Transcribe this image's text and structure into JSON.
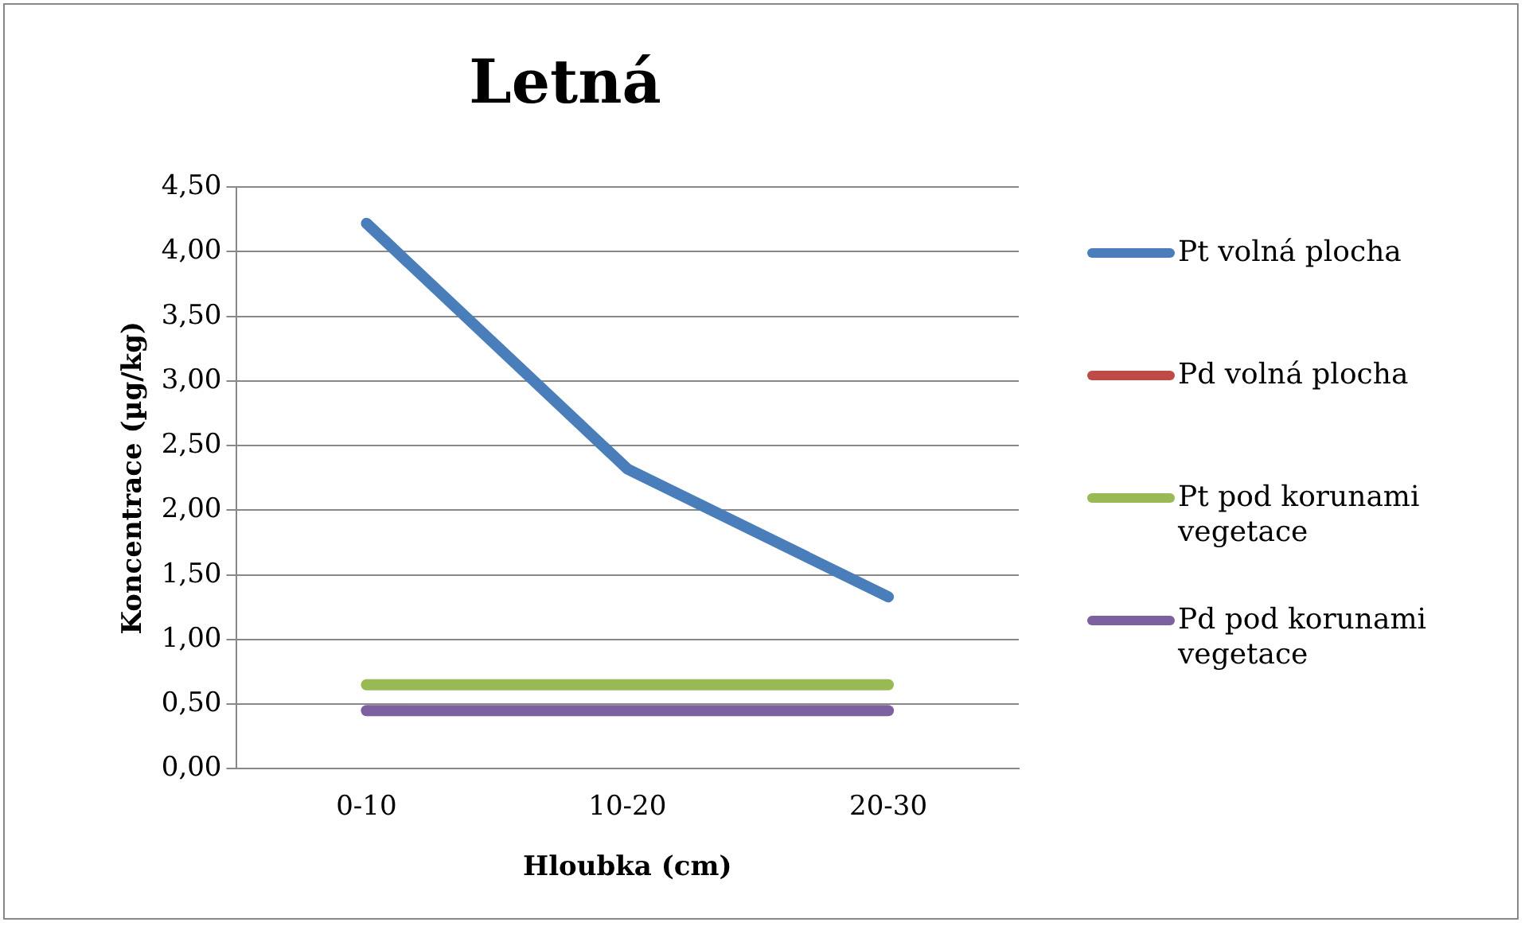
{
  "chart_data": {
    "type": "line",
    "title": "Letná",
    "xlabel": "Hloubka (cm)",
    "ylabel": "Koncentrace (µg/kg)",
    "categories": [
      "0-10",
      "10-20",
      "20-30"
    ],
    "series": [
      {
        "name": "Pt volná plocha",
        "color": "#4a7ebb",
        "values": [
          4.22,
          2.32,
          1.33
        ]
      },
      {
        "name": "Pd volná plocha",
        "color": "#be4b48",
        "values": [
          null,
          null,
          null
        ]
      },
      {
        "name": "Pt pod korunami vegetace",
        "color": "#98b954",
        "values": [
          0.65,
          0.65,
          0.65
        ]
      },
      {
        "name": "Pd pod korunami vegetace",
        "color": "#7d60a0",
        "values": [
          0.45,
          0.45,
          0.45
        ]
      }
    ],
    "ylim": [
      0,
      4.5
    ],
    "yticks": [
      {
        "value": 0,
        "label": "0,00"
      },
      {
        "value": 0.5,
        "label": "0,50"
      },
      {
        "value": 1,
        "label": "1,00"
      },
      {
        "value": 1.5,
        "label": "1,50"
      },
      {
        "value": 2,
        "label": "2,00"
      },
      {
        "value": 2.5,
        "label": "2,50"
      },
      {
        "value": 3,
        "label": "3,00"
      },
      {
        "value": 3.5,
        "label": "3,50"
      },
      {
        "value": 4,
        "label": "4,00"
      },
      {
        "value": 4.5,
        "label": "4,50"
      }
    ],
    "grid": "y",
    "legend": "right",
    "marker": "none",
    "line_style": "solid"
  }
}
